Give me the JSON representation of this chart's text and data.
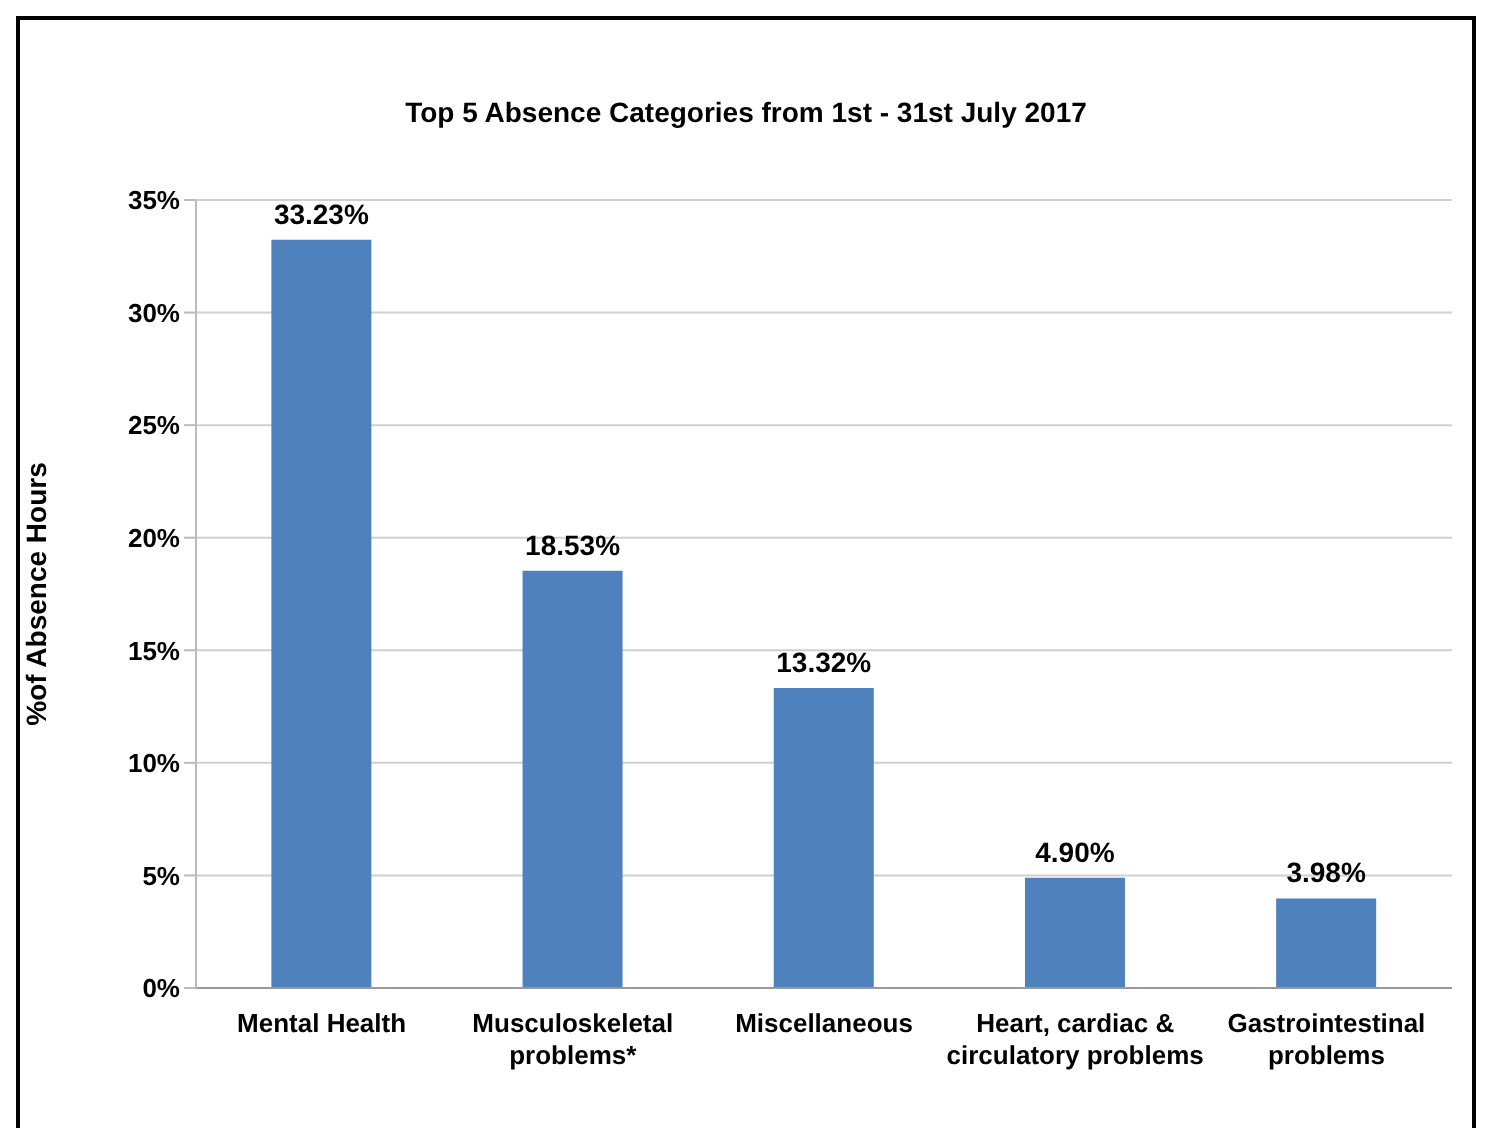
{
  "chart_data": {
    "type": "bar",
    "title": "Top 5 Absence Categories from 1st - 31st July 2017",
    "ylabel": "%of Absence Hours",
    "categories": [
      "Mental Health",
      "Musculoskeletal problems*",
      "Miscellaneous",
      "Heart, cardiac & circulatory problems",
      "Gastrointestinal problems"
    ],
    "values": [
      33.23,
      18.53,
      13.32,
      4.9,
      3.98
    ],
    "value_labels": [
      "33.23%",
      "18.53%",
      "13.32%",
      "4.90%",
      "3.98%"
    ],
    "color": "#4f81bd",
    "ylim": [
      0,
      35
    ],
    "yticks": [
      {
        "value": 0,
        "label": "0%"
      },
      {
        "value": 5,
        "label": "5%"
      },
      {
        "value": 10,
        "label": "10%"
      },
      {
        "value": 15,
        "label": "15%"
      },
      {
        "value": 20,
        "label": "20%"
      },
      {
        "value": 25,
        "label": "25%"
      },
      {
        "value": 30,
        "label": "30%"
      },
      {
        "value": 35,
        "label": "35%"
      }
    ],
    "grid": "y"
  }
}
